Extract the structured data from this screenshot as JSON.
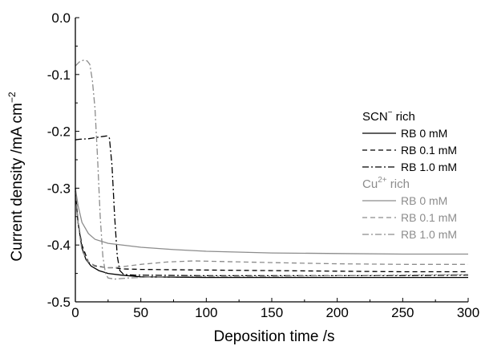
{
  "chart_data": {
    "type": "line",
    "title": "",
    "xlabel": "Deposition time /s",
    "ylabel": {
      "main": "Current density /mA cm",
      "exponent": "−2"
    },
    "xlim": [
      0,
      300
    ],
    "ylim": [
      -0.5,
      0.0
    ],
    "xticks": [
      0,
      50,
      100,
      150,
      200,
      250,
      300
    ],
    "yticks": [
      0.0,
      -0.1,
      -0.2,
      -0.3,
      -0.4,
      -0.5
    ],
    "xtick_labels": [
      "0",
      "50",
      "100",
      "150",
      "200",
      "250",
      "300"
    ],
    "ytick_labels": [
      "0.0",
      "-0.1",
      "-0.2",
      "-0.3",
      "-0.4",
      "-0.5"
    ],
    "grid": false,
    "legend": {
      "placement": "right",
      "groups": [
        {
          "title_main": "SCN",
          "title_sup": "−",
          "title_after": " rich",
          "color": "#000000"
        },
        {
          "title_main": "Cu",
          "title_sup": "2+",
          "title_after": " rich",
          "color": "#8c8c8c"
        }
      ]
    },
    "series": [
      {
        "name": "RB 0 mM",
        "group": 0,
        "color": "#000000",
        "dash": "solid",
        "points": [
          [
            0,
            -0.305
          ],
          [
            2,
            -0.36
          ],
          [
            5,
            -0.405
          ],
          [
            8,
            -0.425
          ],
          [
            12,
            -0.437
          ],
          [
            18,
            -0.445
          ],
          [
            25,
            -0.45
          ],
          [
            35,
            -0.453
          ],
          [
            50,
            -0.456
          ],
          [
            100,
            -0.457
          ],
          [
            150,
            -0.457
          ],
          [
            200,
            -0.457
          ],
          [
            250,
            -0.457
          ],
          [
            300,
            -0.457
          ]
        ]
      },
      {
        "name": "RB 0.1 mM",
        "group": 0,
        "color": "#000000",
        "dash": "dash",
        "points": [
          [
            0,
            -0.3
          ],
          [
            2,
            -0.36
          ],
          [
            5,
            -0.4
          ],
          [
            10,
            -0.43
          ],
          [
            15,
            -0.437
          ],
          [
            25,
            -0.44
          ],
          [
            30,
            -0.44
          ],
          [
            35,
            -0.442
          ],
          [
            50,
            -0.443
          ],
          [
            100,
            -0.444
          ],
          [
            150,
            -0.445
          ],
          [
            200,
            -0.446
          ],
          [
            250,
            -0.447
          ],
          [
            300,
            -0.447
          ]
        ]
      },
      {
        "name": "RB 1.0 mM",
        "group": 0,
        "color": "#000000",
        "dash": "dashdot",
        "points": [
          [
            0,
            -0.215
          ],
          [
            3,
            -0.214
          ],
          [
            10,
            -0.213
          ],
          [
            18,
            -0.21
          ],
          [
            24,
            -0.208
          ],
          [
            26,
            -0.212
          ],
          [
            28,
            -0.26
          ],
          [
            30,
            -0.35
          ],
          [
            32,
            -0.42
          ],
          [
            34,
            -0.445
          ],
          [
            37,
            -0.452
          ],
          [
            45,
            -0.453
          ],
          [
            100,
            -0.454
          ],
          [
            150,
            -0.454
          ],
          [
            200,
            -0.454
          ],
          [
            250,
            -0.454
          ],
          [
            300,
            -0.453
          ]
        ]
      },
      {
        "name": "RB 0 mM",
        "group": 1,
        "color": "#8c8c8c",
        "dash": "solid",
        "points": [
          [
            0,
            -0.3
          ],
          [
            2,
            -0.33
          ],
          [
            5,
            -0.36
          ],
          [
            10,
            -0.38
          ],
          [
            15,
            -0.39
          ],
          [
            25,
            -0.397
          ],
          [
            50,
            -0.404
          ],
          [
            75,
            -0.408
          ],
          [
            100,
            -0.411
          ],
          [
            150,
            -0.414
          ],
          [
            200,
            -0.415
          ],
          [
            250,
            -0.416
          ],
          [
            300,
            -0.416
          ]
        ]
      },
      {
        "name": "RB 0.1 mM",
        "group": 1,
        "color": "#8c8c8c",
        "dash": "dash",
        "points": [
          [
            0,
            -0.3
          ],
          [
            2,
            -0.36
          ],
          [
            5,
            -0.41
          ],
          [
            10,
            -0.43
          ],
          [
            15,
            -0.436
          ],
          [
            20,
            -0.438
          ],
          [
            25,
            -0.44
          ],
          [
            30,
            -0.44
          ],
          [
            40,
            -0.437
          ],
          [
            50,
            -0.434
          ],
          [
            70,
            -0.43
          ],
          [
            90,
            -0.428
          ],
          [
            110,
            -0.429
          ],
          [
            150,
            -0.431
          ],
          [
            200,
            -0.433
          ],
          [
            250,
            -0.434
          ],
          [
            300,
            -0.434
          ]
        ]
      },
      {
        "name": "RB 1.0 mM",
        "group": 1,
        "color": "#8c8c8c",
        "dash": "dashdot",
        "points": [
          [
            0,
            -0.085
          ],
          [
            3,
            -0.078
          ],
          [
            6,
            -0.075
          ],
          [
            9,
            -0.076
          ],
          [
            11,
            -0.082
          ],
          [
            13,
            -0.11
          ],
          [
            15,
            -0.16
          ],
          [
            17,
            -0.25
          ],
          [
            19,
            -0.35
          ],
          [
            21,
            -0.42
          ],
          [
            23,
            -0.45
          ],
          [
            25,
            -0.458
          ],
          [
            30,
            -0.46
          ],
          [
            40,
            -0.458
          ],
          [
            60,
            -0.456
          ],
          [
            100,
            -0.455
          ],
          [
            150,
            -0.455
          ],
          [
            200,
            -0.454
          ],
          [
            250,
            -0.453
          ],
          [
            300,
            -0.452
          ]
        ]
      }
    ]
  }
}
